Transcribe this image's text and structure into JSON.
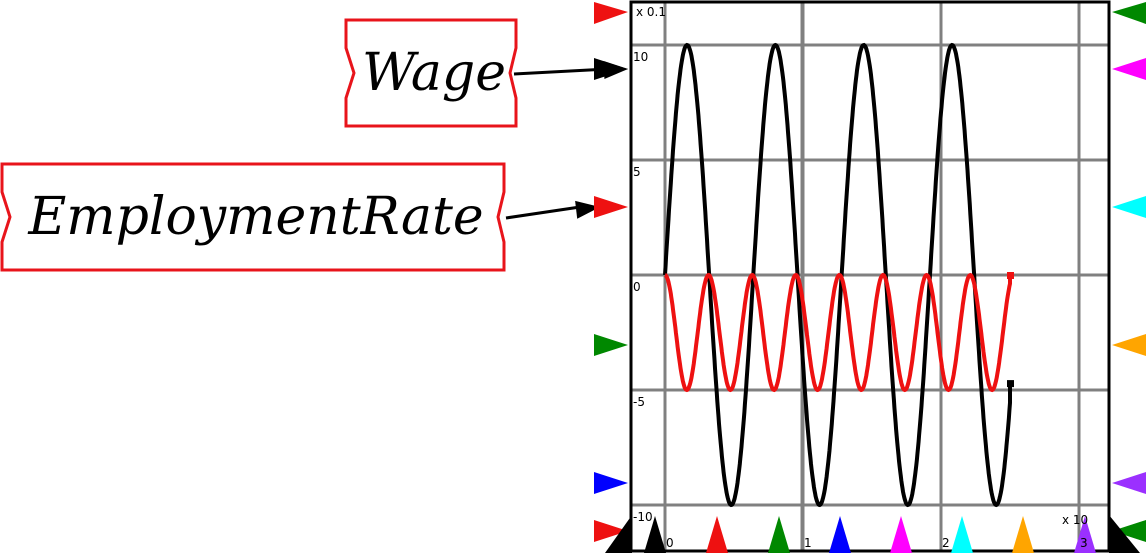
{
  "variables": [
    {
      "id": "wage",
      "label": "Wage"
    },
    {
      "id": "employment",
      "label": "EmploymentRate"
    }
  ],
  "plot": {
    "y_multiplier_label": "x 0.1",
    "x_multiplier_label": "x 10",
    "y_ticks": [
      "10",
      "5",
      "0",
      "-5",
      "-10"
    ],
    "x_ticks": [
      "0",
      "1",
      "2",
      "3"
    ]
  },
  "colors": {
    "frame_stroke": "#e8141b",
    "arrow": "#000000",
    "grid": "#808080",
    "series_wage": "#000000",
    "series_employment": "#ee1111",
    "markers": [
      "#ee1111",
      "#008800",
      "#0000ff",
      "#ff00ff",
      "#00ffff",
      "#ffa500",
      "#9b30ff",
      "#000000"
    ]
  },
  "chart_data": {
    "type": "line",
    "x_range": [
      0,
      3.4
    ],
    "y_range": [
      -10,
      11
    ],
    "series": [
      {
        "name": "Wage",
        "color": "#000000",
        "amplitude": 10,
        "period": 0.64,
        "x_end": 2.5,
        "end_value": -4.7
      },
      {
        "name": "EmploymentRate",
        "color": "#ee1111",
        "amplitude": 5,
        "period": 0.316,
        "x_end": 2.5,
        "end_value": 0
      }
    ]
  }
}
